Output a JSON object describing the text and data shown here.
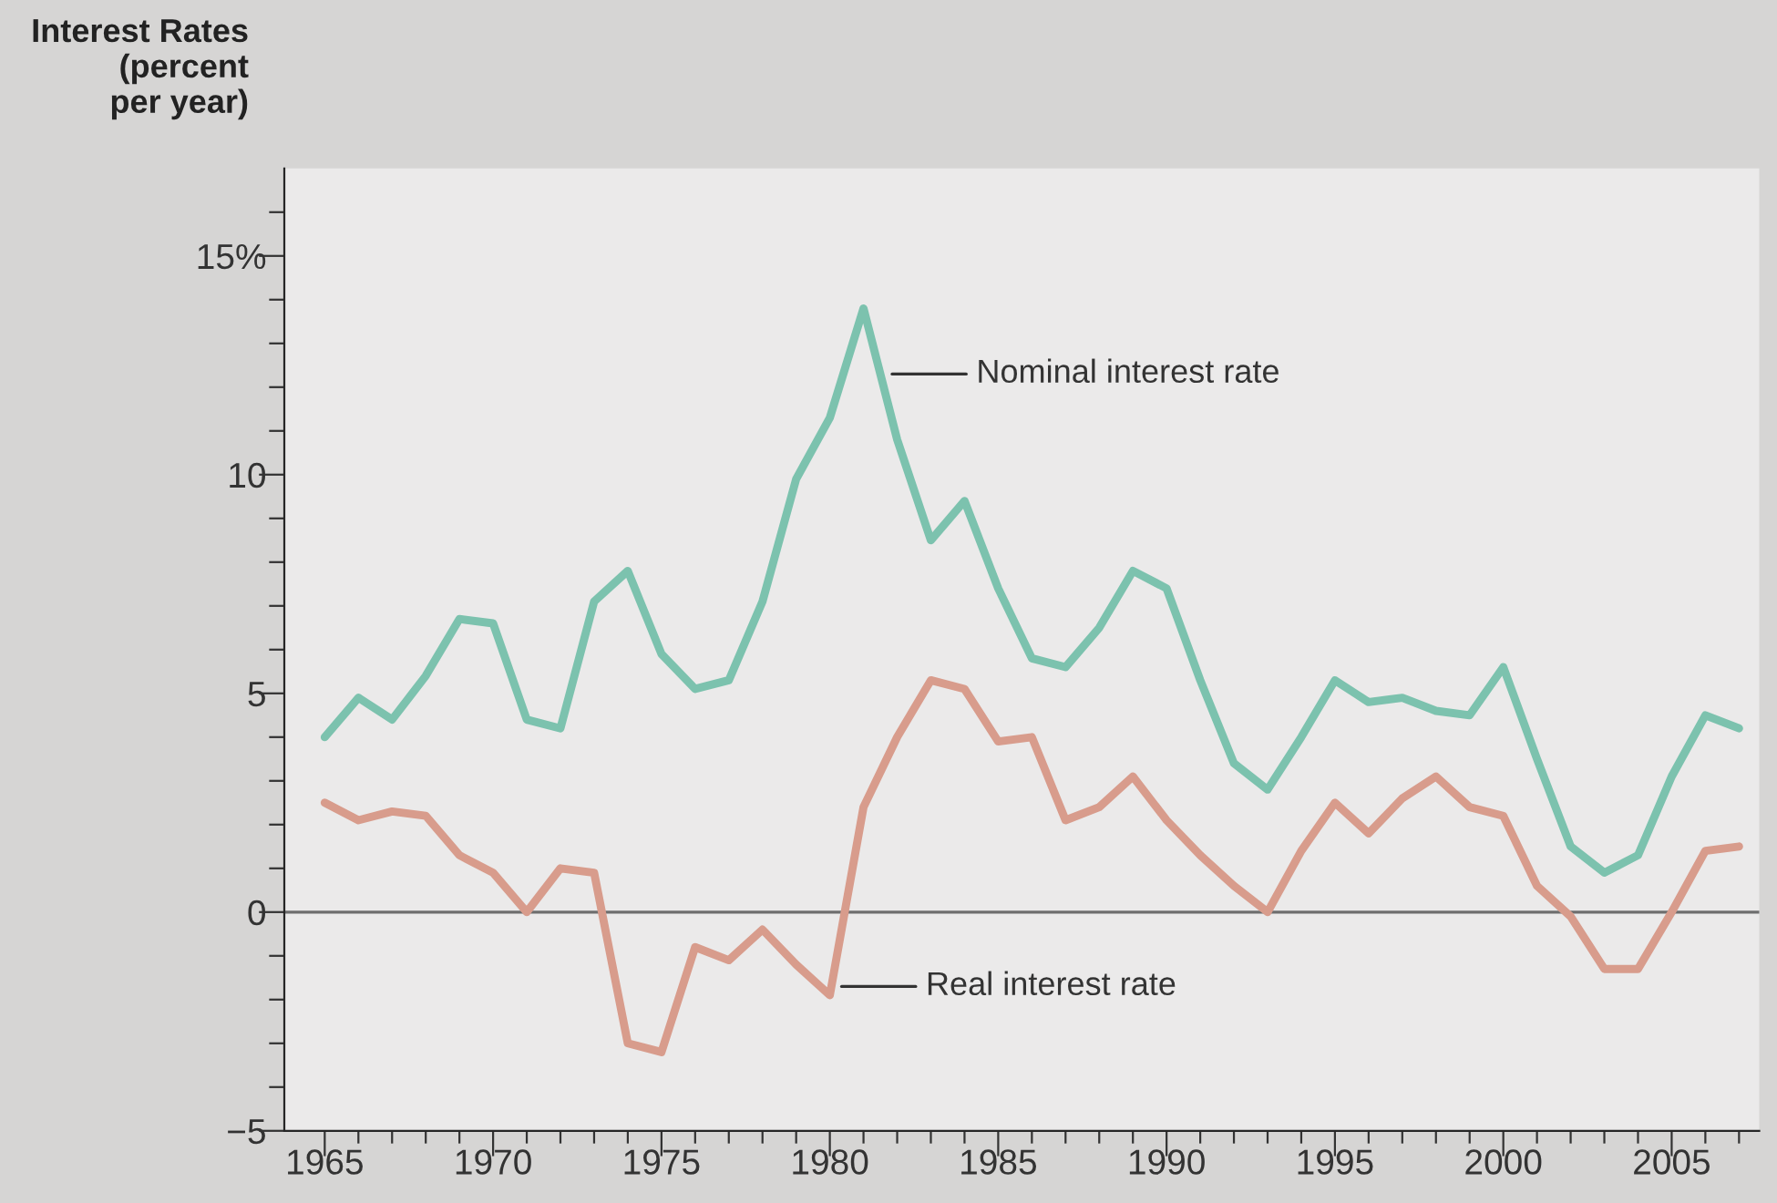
{
  "chart_data": {
    "type": "line",
    "ylabel": "Interest Rates\n(percent\nper year)",
    "x": [
      1965,
      1966,
      1967,
      1968,
      1969,
      1970,
      1971,
      1972,
      1973,
      1974,
      1975,
      1976,
      1977,
      1978,
      1979,
      1980,
      1981,
      1982,
      1983,
      1984,
      1985,
      1986,
      1987,
      1988,
      1989,
      1990,
      1991,
      1992,
      1993,
      1994,
      1995,
      1996,
      1997,
      1998,
      1999,
      2000,
      2001,
      2002,
      2003,
      2004,
      2005,
      2006,
      2007
    ],
    "series": [
      {
        "name": "Nominal interest rate",
        "color": "#7cc2ae",
        "values": [
          4.0,
          4.9,
          4.4,
          5.4,
          6.7,
          6.6,
          4.4,
          4.2,
          7.1,
          7.8,
          5.9,
          5.1,
          5.3,
          7.1,
          9.9,
          11.3,
          13.8,
          10.8,
          8.5,
          9.4,
          7.4,
          5.8,
          5.6,
          6.5,
          7.8,
          7.4,
          5.3,
          3.4,
          2.8,
          4.0,
          5.3,
          4.8,
          4.9,
          4.6,
          4.5,
          5.6,
          3.5,
          1.5,
          0.9,
          1.3,
          3.1,
          4.5,
          4.2
        ]
      },
      {
        "name": "Real interest rate",
        "color": "#d89c8c",
        "values": [
          2.5,
          2.1,
          2.3,
          2.2,
          1.3,
          0.9,
          0.0,
          1.0,
          0.9,
          -3.0,
          -3.2,
          -0.8,
          -1.1,
          -0.4,
          -1.2,
          -1.9,
          2.4,
          4.0,
          5.3,
          5.1,
          3.9,
          4.0,
          2.1,
          2.4,
          3.1,
          2.1,
          1.3,
          0.6,
          0.0,
          1.4,
          2.5,
          1.8,
          2.6,
          3.1,
          2.4,
          2.2,
          0.6,
          -0.1,
          -1.3,
          -1.3,
          0.0,
          1.4,
          1.5
        ]
      }
    ],
    "xlim": [
      1963.8,
      2007.6
    ],
    "xticks": [
      1965,
      {
        "value": 1966,
        "label": null
      },
      {
        "value": 1967,
        "label": null
      },
      {
        "value": 1968,
        "label": null
      },
      {
        "value": 1969,
        "label": null
      },
      1970,
      {
        "value": 1971,
        "label": null
      },
      {
        "value": 1972,
        "label": null
      },
      {
        "value": 1973,
        "label": null
      },
      {
        "value": 1974,
        "label": null
      },
      1975,
      {
        "value": 1976,
        "label": null
      },
      {
        "value": 1977,
        "label": null
      },
      {
        "value": 1978,
        "label": null
      },
      {
        "value": 1979,
        "label": null
      },
      1980,
      {
        "value": 1981,
        "label": null
      },
      {
        "value": 1982,
        "label": null
      },
      {
        "value": 1983,
        "label": null
      },
      {
        "value": 1984,
        "label": null
      },
      1985,
      {
        "value": 1986,
        "label": null
      },
      {
        "value": 1987,
        "label": null
      },
      {
        "value": 1988,
        "label": null
      },
      {
        "value": 1989,
        "label": null
      },
      1990,
      {
        "value": 1991,
        "label": null
      },
      {
        "value": 1992,
        "label": null
      },
      {
        "value": 1993,
        "label": null
      },
      {
        "value": 1994,
        "label": null
      },
      1995,
      {
        "value": 1996,
        "label": null
      },
      {
        "value": 1997,
        "label": null
      },
      {
        "value": 1998,
        "label": null
      },
      {
        "value": 1999,
        "label": null
      },
      2000,
      {
        "value": 2001,
        "label": null
      },
      {
        "value": 2002,
        "label": null
      },
      {
        "value": 2003,
        "label": null
      },
      {
        "value": 2004,
        "label": null
      },
      2005,
      {
        "value": 2006,
        "label": null
      },
      {
        "value": 2007,
        "label": null
      }
    ],
    "ylim": [
      -5,
      17
    ],
    "yticks": [
      {
        "value": -5,
        "label": "−5"
      },
      {
        "value": -4,
        "label": null
      },
      {
        "value": -3,
        "label": null
      },
      {
        "value": -2,
        "label": null
      },
      {
        "value": -1,
        "label": null
      },
      0,
      {
        "value": 1,
        "label": null
      },
      {
        "value": 2,
        "label": null
      },
      {
        "value": 3,
        "label": null
      },
      {
        "value": 4,
        "label": null
      },
      5,
      {
        "value": 6,
        "label": null
      },
      {
        "value": 7,
        "label": null
      },
      {
        "value": 8,
        "label": null
      },
      {
        "value": 9,
        "label": null
      },
      10,
      {
        "value": 11,
        "label": null
      },
      {
        "value": 12,
        "label": null
      },
      {
        "value": 13,
        "label": null
      },
      {
        "value": 14,
        "label": null
      },
      {
        "value": 15,
        "label": "15%"
      },
      {
        "value": 16,
        "label": null
      }
    ],
    "ref_lines": [
      {
        "axis": "y",
        "value": 0,
        "color": "#6e6e6e"
      }
    ],
    "grid": false,
    "legend": false,
    "marker": "none",
    "line_style": "solid"
  }
}
